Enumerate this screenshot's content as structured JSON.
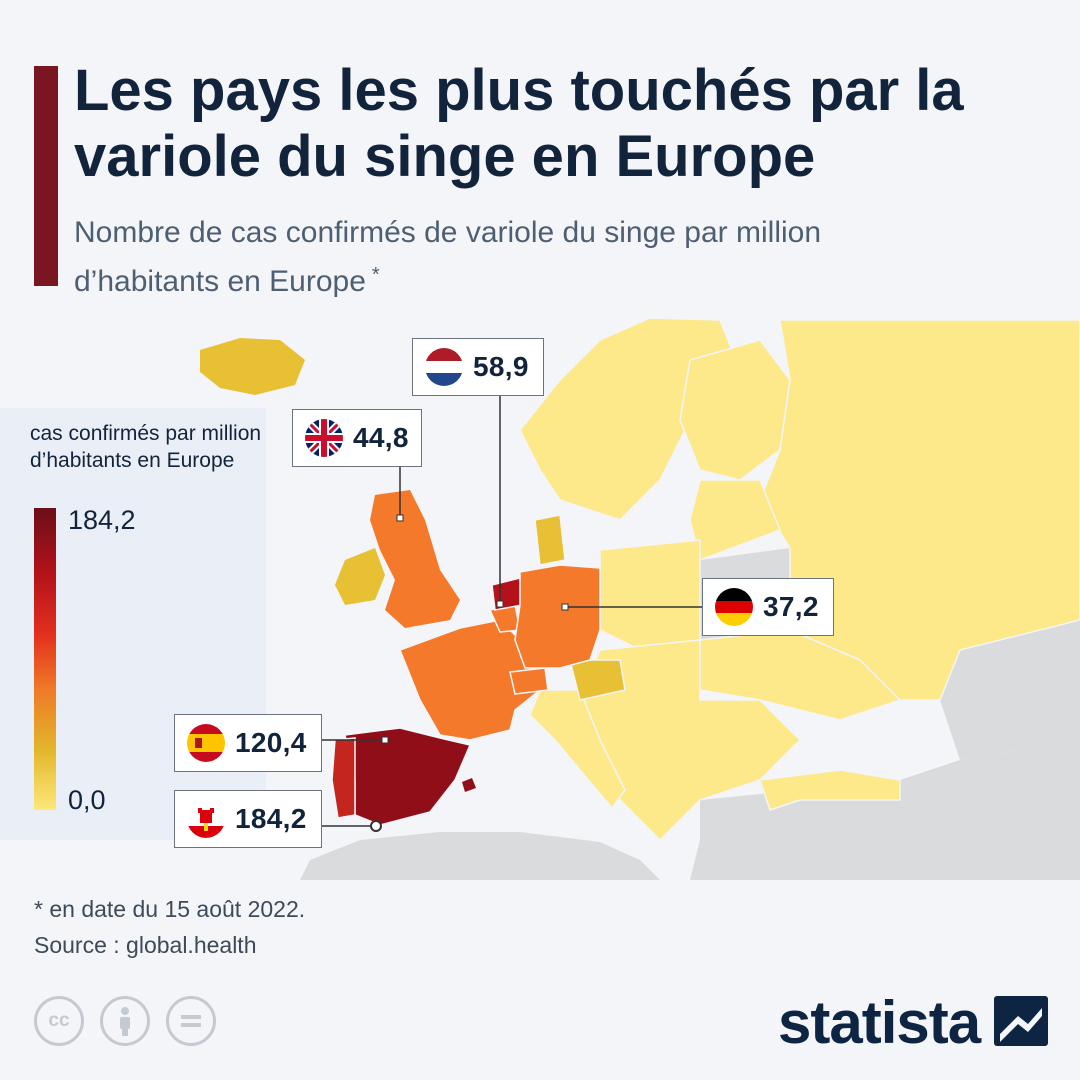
{
  "header": {
    "title": "Les pays les plus touchés par la variole du singe en Europe",
    "subtitle": "Nombre de cas confirmés de variole du singe par million d’habitants en Europe",
    "subtitle_marker": "*"
  },
  "legend": {
    "title": "cas confirmés par million d’habitants en Europe",
    "max_label": "184,2",
    "min_label": "0,0",
    "scale_min": 0.0,
    "scale_max": 184.2,
    "colors": {
      "low": "#fde87a",
      "mid": "#ee7a26",
      "high": "#6b0f17"
    }
  },
  "map": {
    "callouts": [
      {
        "country": "Pays-Bas",
        "flag": "netherlands-flag-icon",
        "value": "58,9"
      },
      {
        "country": "Royaume-Uni",
        "flag": "uk-flag-icon",
        "value": "44,8"
      },
      {
        "country": "Allemagne",
        "flag": "germany-flag-icon",
        "value": "37,2"
      },
      {
        "country": "Espagne",
        "flag": "spain-flag-icon",
        "value": "120,4"
      },
      {
        "country": "Gibraltar",
        "flag": "gibraltar-flag-icon",
        "value": "184,2"
      }
    ],
    "colors": {
      "no_data": "#dadbdd",
      "sea": "#f3f5f8",
      "very_low": "#fde98a"
    }
  },
  "footer": {
    "footnote": "* en date du 15 août 2022.",
    "source": "Source : global.health",
    "license_icons": [
      "cc-icon",
      "attribution-icon",
      "no-derivatives-icon"
    ],
    "brand": "statista"
  }
}
